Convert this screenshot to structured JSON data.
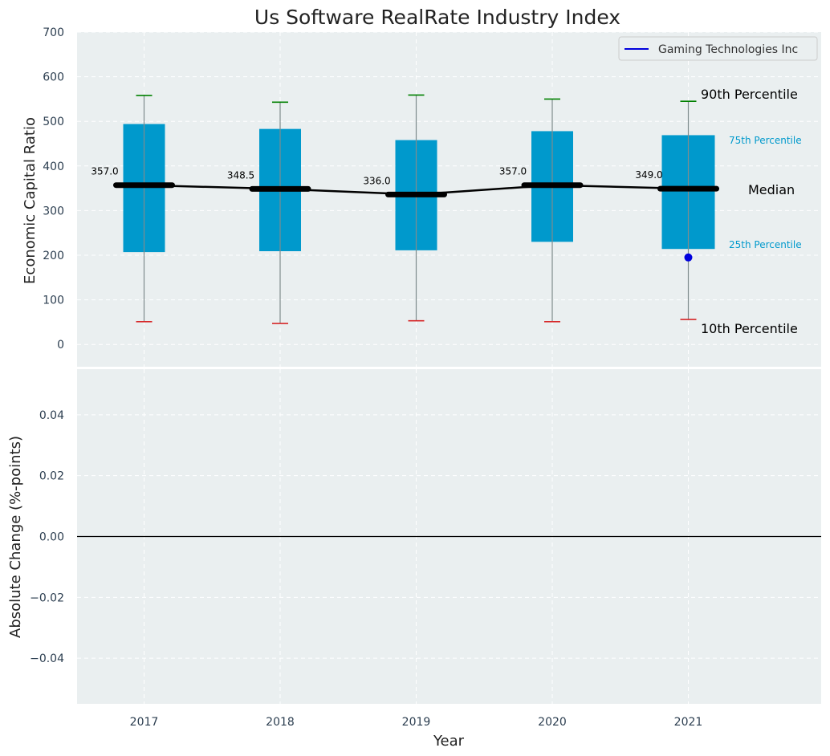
{
  "chart_data": [
    {
      "type": "box",
      "title": "Us Software RealRate Industry Index",
      "ylabel": "Economic Capital Ratio",
      "ylim": [
        -50,
        700
      ],
      "yticks": [
        0,
        100,
        200,
        300,
        400,
        500,
        600,
        700
      ],
      "categories": [
        "2017",
        "2018",
        "2019",
        "2020",
        "2021"
      ],
      "p10": [
        51,
        47,
        53,
        51,
        56
      ],
      "p25": [
        207,
        209,
        211,
        230,
        214
      ],
      "median": [
        357.0,
        348.5,
        336.0,
        357.0,
        349.0
      ],
      "median_labels": [
        "357.0",
        "348.5",
        "336.0",
        "357.0",
        "349.0"
      ],
      "p75": [
        494,
        483,
        458,
        478,
        469
      ],
      "p90": [
        558,
        543,
        559,
        550,
        545
      ],
      "company_series": {
        "name": "Gaming Technologies Inc",
        "x": [
          "2021"
        ],
        "y": [
          195
        ]
      },
      "legend": {
        "labels": [
          "Gaming Technologies Inc"
        ],
        "placement": "top-right"
      },
      "annotations": {
        "p90": "90th Percentile",
        "p75": "75th Percentile",
        "median": "Median",
        "p25": "25th Percentile",
        "p10": "10th Percentile"
      },
      "grid": true
    },
    {
      "type": "line",
      "ylabel": "Absolute Change (%-points)",
      "xlabel": "Year",
      "ylim": [
        -0.055,
        0.055
      ],
      "yticks": [
        -0.04,
        -0.02,
        0.0,
        0.02,
        0.04
      ],
      "ytick_labels": [
        "−0.04",
        "−0.02",
        "0.00",
        "0.02",
        "0.04"
      ],
      "xtick_labels": [
        "2017",
        "2018",
        "2019",
        "2020",
        "2021"
      ],
      "zero_line": 0,
      "grid": true
    }
  ],
  "colors": {
    "background": "#eaeff0",
    "box_fill": "#0099cc",
    "median_line": "#000000",
    "p90_cap": "#008000",
    "p10_cap": "#d62728",
    "whisker": "#7f8c8d",
    "company": "#0000dd",
    "annotation_light": "#0099cc",
    "tick_text": "#2c3e50"
  }
}
